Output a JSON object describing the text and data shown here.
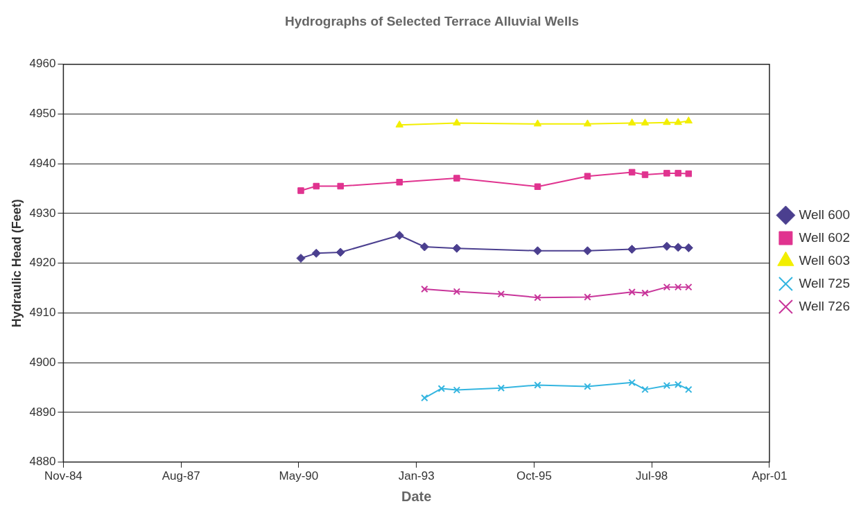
{
  "chart_data": {
    "type": "line",
    "title": "Hydrographs of Selected Terrace Alluvial Wells",
    "xlabel": "Date",
    "ylabel": "Hydraulic Head (Feet)",
    "xlim": [
      "1984-11-10",
      "2001-04-15"
    ],
    "xticks": [
      {
        "value": "1984-11-10",
        "label": "Nov-84"
      },
      {
        "value": "1987-08-07",
        "label": "Aug-87"
      },
      {
        "value": "1990-05-03",
        "label": "May-90"
      },
      {
        "value": "1993-01-27",
        "label": "Jan-93"
      },
      {
        "value": "1995-10-24",
        "label": "Oct-95"
      },
      {
        "value": "1998-07-20",
        "label": "Jul-98"
      },
      {
        "value": "2001-04-15",
        "label": "Apr-01"
      }
    ],
    "ylim": [
      4880,
      4960
    ],
    "yticks": [
      4880,
      4890,
      4900,
      4910,
      4920,
      4930,
      4940,
      4950,
      4960
    ],
    "grid": "y",
    "legend": "right",
    "series": [
      {
        "name": "Well 600",
        "color": "#4b3f8f",
        "marker": "diamond",
        "x": [
          "1990-05-21",
          "1990-09-29",
          "1991-04-23",
          "1992-09-05",
          "1993-04-06",
          "1994-01-05",
          "1995-11-23",
          "1997-01-20",
          "1998-02-02",
          "1998-11-25",
          "1999-03-01",
          "1999-05-29"
        ],
        "values": [
          4921,
          4922,
          4922.2,
          4925.6,
          4923.3,
          4923,
          4922.5,
          4922.5,
          4922.8,
          4923.4,
          4923.2,
          4923.1
        ]
      },
      {
        "name": "Well 602",
        "color": "#e0338f",
        "marker": "square",
        "x": [
          "1990-05-21",
          "1990-09-29",
          "1991-04-23",
          "1992-09-05",
          "1994-01-05",
          "1995-11-23",
          "1997-01-20",
          "1998-02-02",
          "1998-05-24",
          "1998-11-25",
          "1999-03-01",
          "1999-05-29"
        ],
        "values": [
          4934.6,
          4935.5,
          4935.5,
          4936.3,
          4937.1,
          4935.4,
          4937.5,
          4938.3,
          4937.8,
          4938.1,
          4938.1,
          4938
        ]
      },
      {
        "name": "Well 603",
        "color": "#f2ee00",
        "marker": "triangle",
        "x": [
          "1992-09-05",
          "1994-01-05",
          "1995-11-23",
          "1997-01-20",
          "1998-02-02",
          "1998-05-24",
          "1998-11-25",
          "1999-03-01",
          "1999-05-29"
        ],
        "values": [
          4947.8,
          4948.2,
          4948,
          4948,
          4948.2,
          4948.2,
          4948.3,
          4948.3,
          4948.6
        ]
      },
      {
        "name": "Well 725",
        "color": "#33b5e0",
        "marker": "cross",
        "x": [
          "1993-04-06",
          "1993-08-28",
          "1994-01-05",
          "1995-01-17",
          "1995-11-23",
          "1997-01-20",
          "1998-02-02",
          "1998-05-24",
          "1998-11-25",
          "1999-03-01",
          "1999-05-29"
        ],
        "values": [
          4892.9,
          4894.8,
          4894.5,
          4894.9,
          4895.5,
          4895.2,
          4896,
          4894.6,
          4895.4,
          4895.6,
          4894.6
        ]
      },
      {
        "name": "Well 726",
        "color": "#c8359a",
        "marker": "cross",
        "x": [
          "1993-04-06",
          "1994-01-05",
          "1995-01-17",
          "1995-11-23",
          "1997-01-20",
          "1998-02-02",
          "1998-05-24",
          "1998-11-25",
          "1999-03-01",
          "1999-05-29"
        ],
        "values": [
          4914.8,
          4914.3,
          4913.8,
          4913.1,
          4913.2,
          4914.2,
          4914,
          4915.2,
          4915.2,
          4915.2
        ]
      }
    ]
  }
}
